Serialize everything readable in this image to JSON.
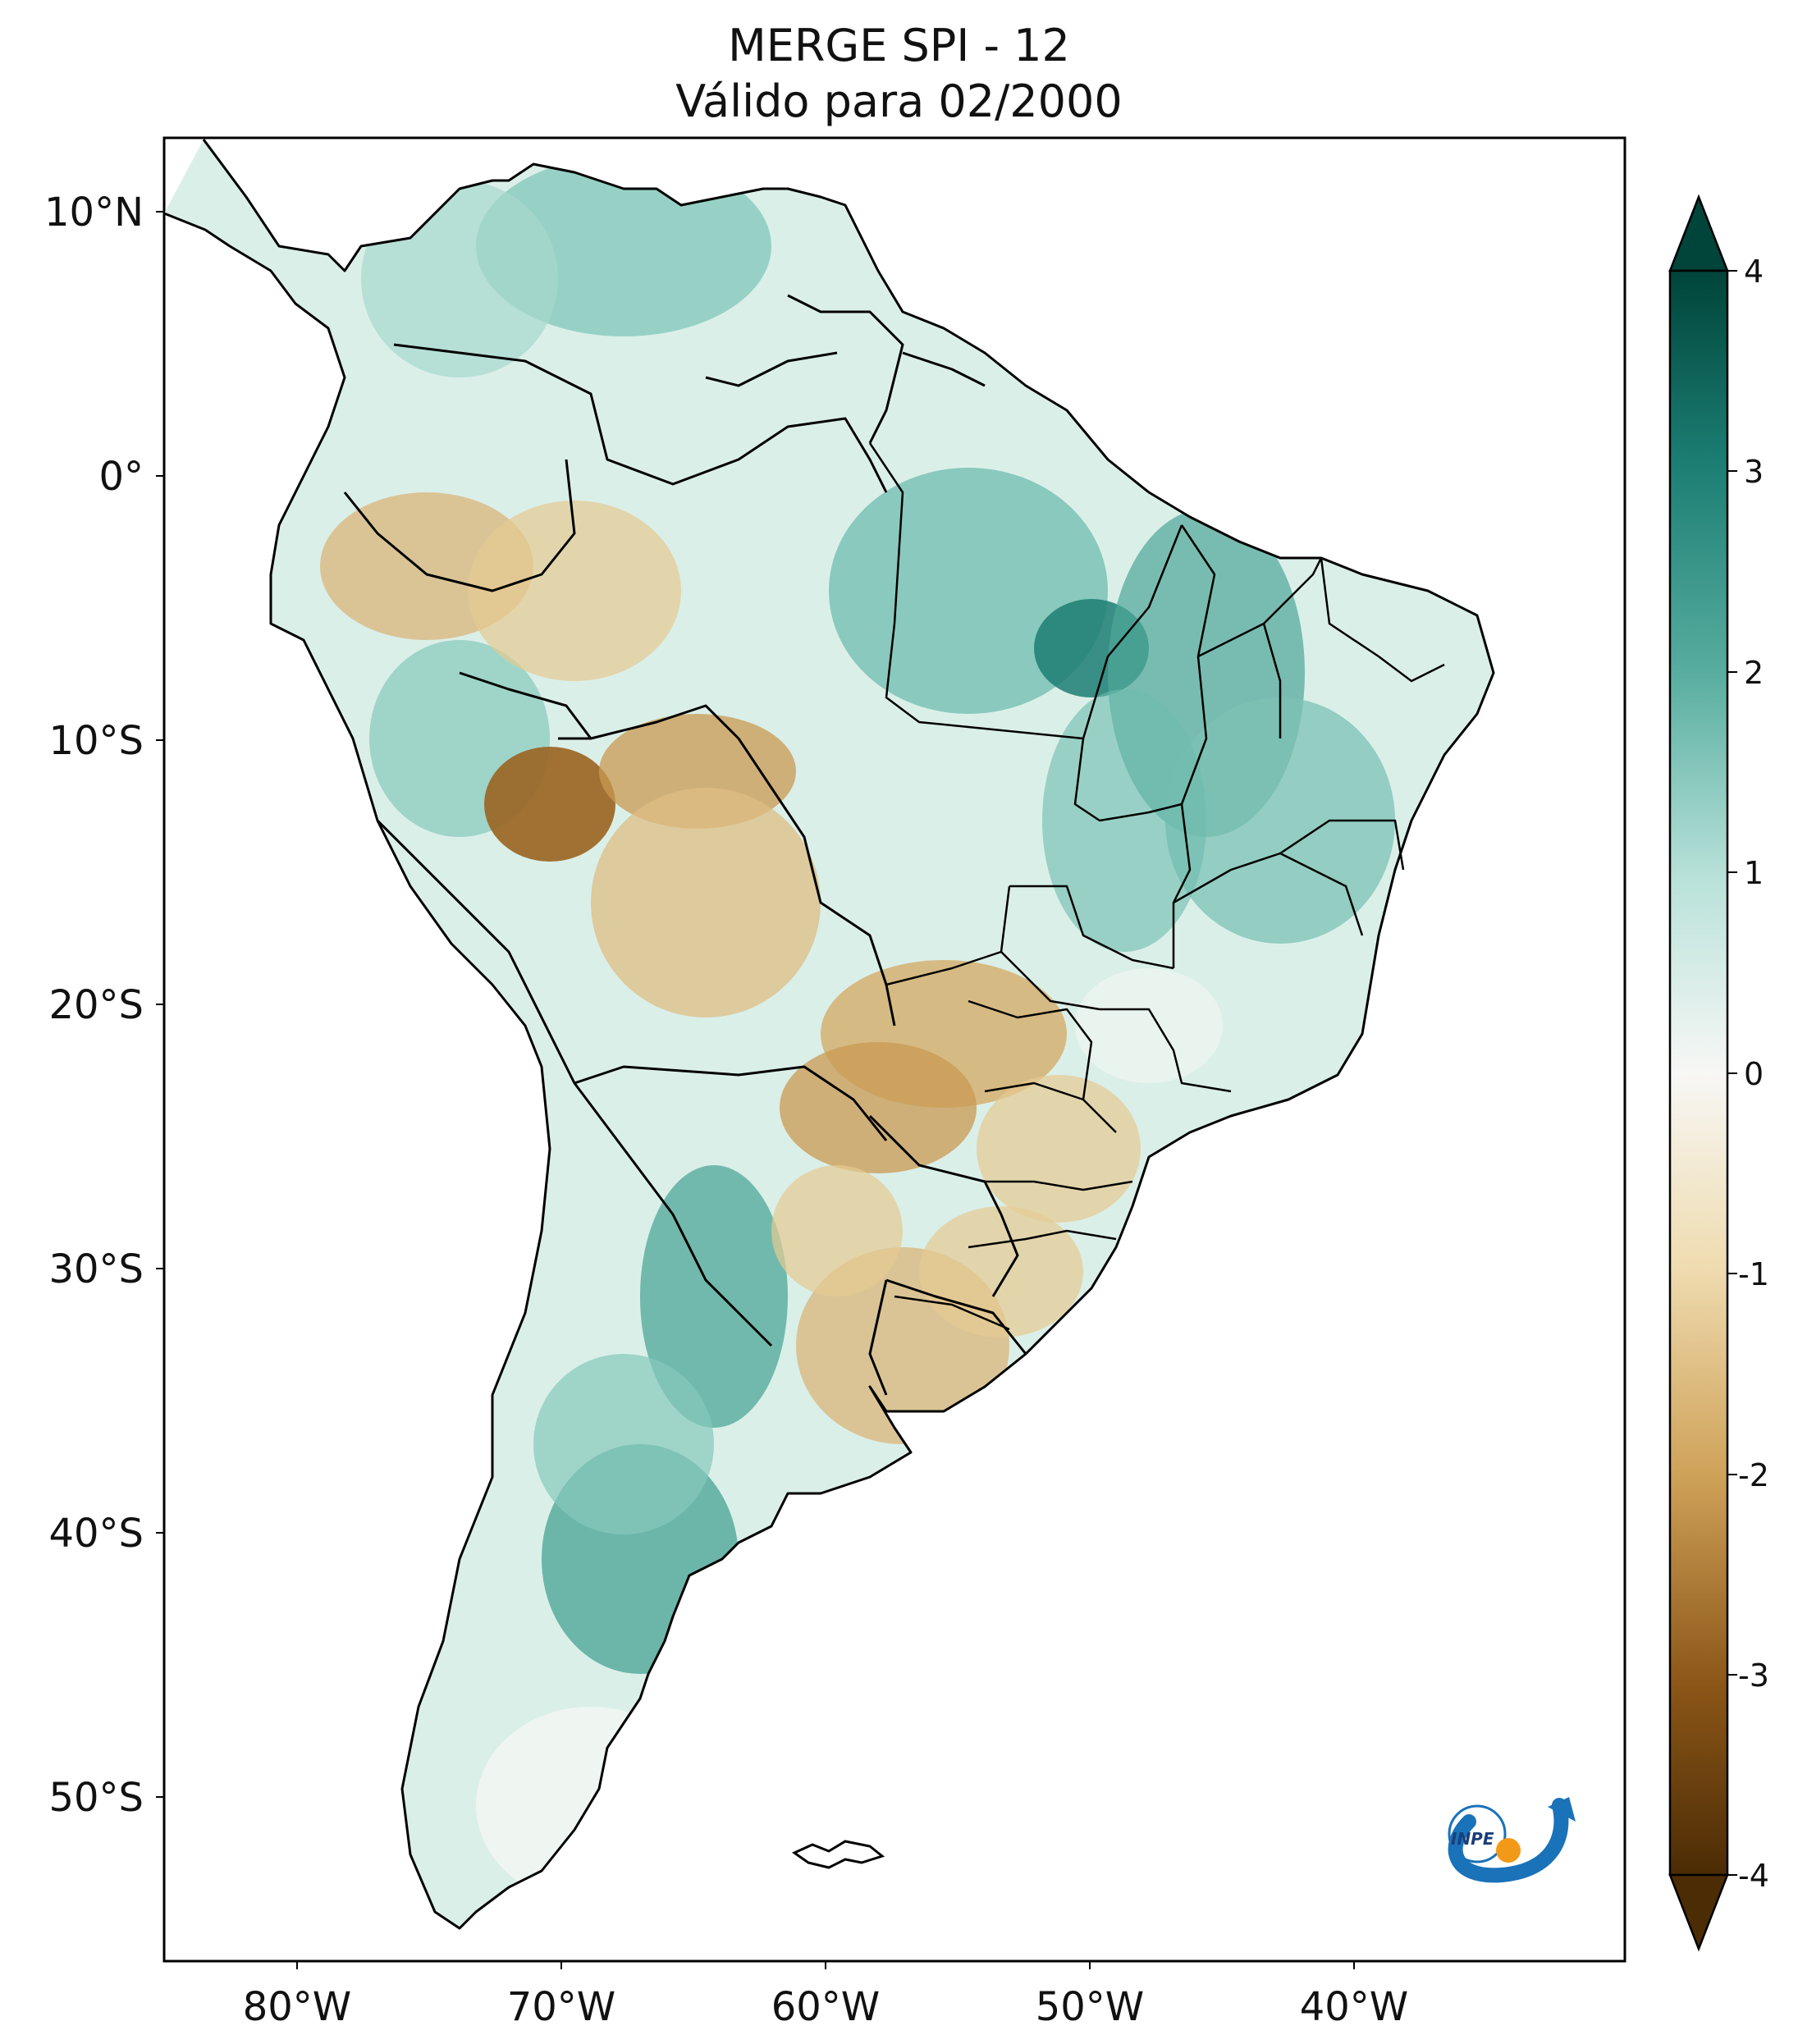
{
  "title": {
    "line1": "MERGE   SPI - 12",
    "line2": "Válido para 02/2000"
  },
  "axes": {
    "lat_labels": [
      "10°N",
      "0°",
      "10°S",
      "20°S",
      "30°S",
      "40°S",
      "50°S"
    ],
    "lon_labels": [
      "80°W",
      "70°W",
      "60°W",
      "50°W",
      "40°W"
    ]
  },
  "colorbar": {
    "ticks": [
      "4",
      "3",
      "2",
      "1",
      "0",
      "-1",
      "-2",
      "-3",
      "-4"
    ],
    "colors": {
      "max": "#00443a",
      "c3": "#1c7e73",
      "c2": "#57ad9f",
      "c1": "#b9e2da",
      "zero": "#f7f7f5",
      "m1": "#efdcb0",
      "m2": "#cfa259",
      "m3": "#8c5718",
      "min": "#4c2c05"
    }
  },
  "logo": {
    "text": "INPE"
  }
}
